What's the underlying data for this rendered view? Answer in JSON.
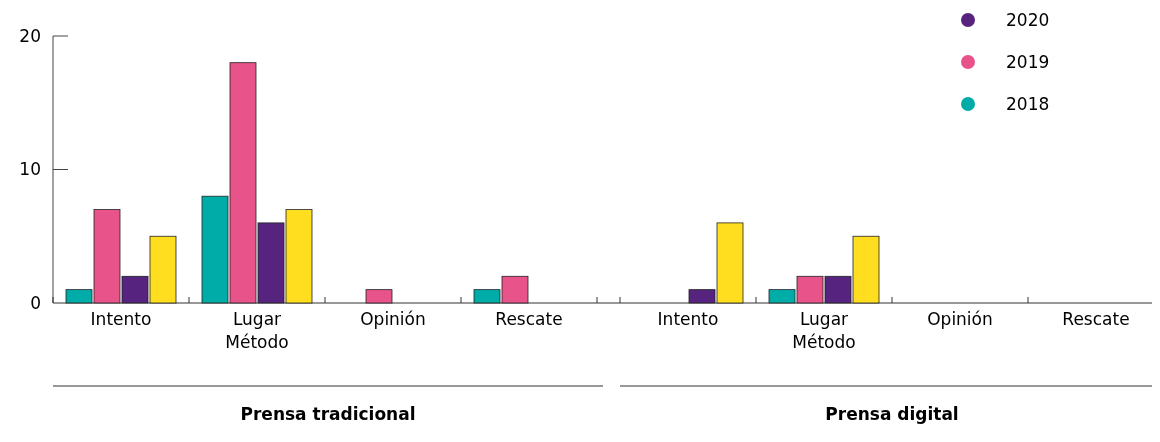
{
  "chart_data": {
    "type": "bar",
    "categories": [
      "Intento",
      "Lugar Método",
      "Opinión",
      "Rescate",
      "Intento",
      "Lugar Método",
      "Opinión",
      "Rescate"
    ],
    "series": [
      {
        "name": "2018",
        "color": "#00aca8",
        "values": [
          1,
          8,
          0,
          1,
          0,
          1,
          0,
          0
        ]
      },
      {
        "name": "2019",
        "color": "#e8538a",
        "values": [
          7,
          18,
          1,
          2,
          0,
          2,
          0,
          0
        ]
      },
      {
        "name": "2020",
        "color": "#56247e",
        "values": [
          2,
          6,
          0,
          0,
          1,
          2,
          0,
          0
        ]
      },
      {
        "color": "#ffdd1f",
        "values": [
          5,
          7,
          0,
          0,
          6,
          5,
          0,
          0
        ]
      }
    ],
    "ylim": [
      0,
      20
    ],
    "yticks": [
      0,
      10,
      20
    ],
    "legend": "top right",
    "grid": false,
    "annotations": [
      "Prensa tradicional",
      "Prensa digital"
    ]
  }
}
